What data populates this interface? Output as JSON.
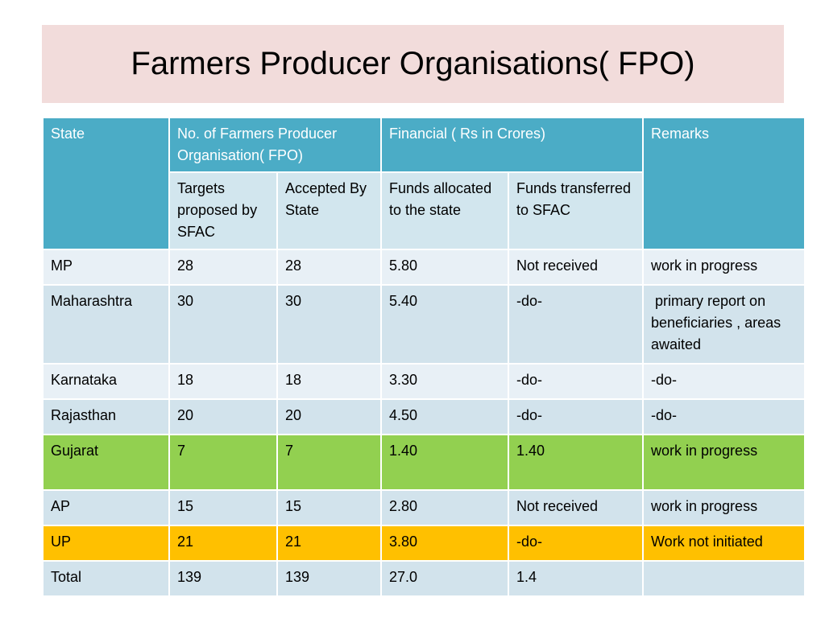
{
  "title": "Farmers Producer Organisations( FPO)",
  "headers": {
    "state": "State",
    "no_of_fpo": "No. of Farmers Producer Organisation( FPO)",
    "financial": "Financial ( Rs in Crores)",
    "remarks": "Remarks",
    "targets": "Targets proposed by SFAC",
    "accepted": "Accepted By State",
    "funds_allocated": "Funds allocated to the state",
    "funds_transferred": "Funds transferred  to SFAC"
  },
  "rows": [
    {
      "state": "MP",
      "targets": "28",
      "accepted": "28",
      "allocated": "5.80",
      "transferred": "Not received",
      "remarks": "work in progress",
      "color": "#e8f0f6"
    },
    {
      "state": "Maharashtra",
      "targets": "30",
      "accepted": "30",
      "allocated": "5.40",
      "transferred": "-do-",
      "remarks": " primary report on beneficiaries , areas awaited",
      "color": "#d2e3ec"
    },
    {
      "state": "Karnataka",
      "targets": "18",
      "accepted": "18",
      "allocated": "3.30",
      "transferred": "-do-",
      "remarks": "-do-",
      "color": "#e8f0f6"
    },
    {
      "state": "Rajasthan",
      "targets": "20",
      "accepted": "20",
      "allocated": "4.50",
      "transferred": "-do-",
      "remarks": "-do-",
      "color": "#d2e3ec"
    },
    {
      "state": "Gujarat",
      "targets": "7",
      "accepted": "7",
      "allocated": "1.40",
      "transferred": "1.40",
      "remarks": "work in progress",
      "color": "#92d050"
    },
    {
      "state": "AP",
      "targets": "15",
      "accepted": "15",
      "allocated": "2.80",
      "transferred": "Not received",
      "remarks": "work in progress",
      "color": "#d2e3ec"
    },
    {
      "state": "UP",
      "targets": "21",
      "accepted": "21",
      "allocated": "3.80",
      "transferred": "-do-",
      "remarks": "Work not initiated",
      "color": "#ffc000"
    },
    {
      "state": "Total",
      "targets": "139",
      "accepted": "139",
      "allocated": "27.0",
      "transferred": "1.4",
      "remarks": "",
      "color": "#d2e3ec"
    }
  ]
}
